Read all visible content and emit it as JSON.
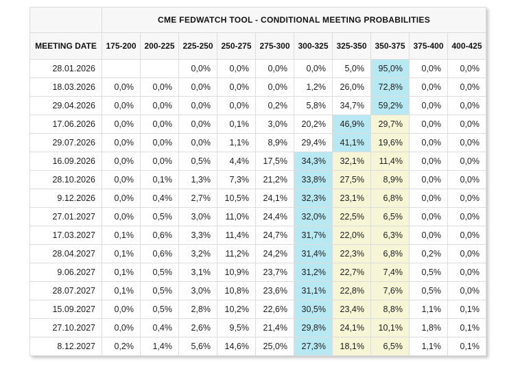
{
  "chart_data": {
    "type": "table",
    "title": "CME FEDWATCH TOOL - CONDITIONAL MEETING PROBABILITIES",
    "row_header": "MEETING DATE",
    "columns": [
      "175-200",
      "200-225",
      "225-250",
      "250-275",
      "275-300",
      "300-325",
      "325-350",
      "350-375",
      "375-400",
      "400-425"
    ],
    "colors": {
      "modal_highlight": "#b8e9f3",
      "secondary_highlight": "#f6f6d6",
      "header_background": "#f7f7f7",
      "border": "#dcdcdc",
      "text": "#1c1c1c"
    },
    "rows": [
      {
        "date": "28.01.2026",
        "values": [
          "",
          "",
          "0,0%",
          "0,0%",
          "0,0%",
          "0,0%",
          "5,0%",
          "95,0%",
          "0,0%",
          "0,0%"
        ],
        "highlights": [
          "",
          "",
          "",
          "",
          "",
          "",
          "",
          "cyan",
          "",
          ""
        ]
      },
      {
        "date": "18.03.2026",
        "values": [
          "0,0%",
          "0,0%",
          "0,0%",
          "0,0%",
          "0,0%",
          "1,2%",
          "26,0%",
          "72,8%",
          "0,0%",
          "0,0%"
        ],
        "highlights": [
          "",
          "",
          "",
          "",
          "",
          "",
          "",
          "cyan",
          "",
          ""
        ]
      },
      {
        "date": "29.04.2026",
        "values": [
          "0,0%",
          "0,0%",
          "0,0%",
          "0,0%",
          "0,2%",
          "5,8%",
          "34,7%",
          "59,2%",
          "0,0%",
          "0,0%"
        ],
        "highlights": [
          "",
          "",
          "",
          "",
          "",
          "",
          "",
          "cyan",
          "",
          ""
        ]
      },
      {
        "date": "17.06.2026",
        "values": [
          "0,0%",
          "0,0%",
          "0,0%",
          "0,1%",
          "3,0%",
          "20,2%",
          "46,9%",
          "29,7%",
          "0,0%",
          "0,0%"
        ],
        "highlights": [
          "",
          "",
          "",
          "",
          "",
          "",
          "cyan",
          "yellow",
          "",
          ""
        ]
      },
      {
        "date": "29.07.2026",
        "values": [
          "0,0%",
          "0,0%",
          "0,0%",
          "1,1%",
          "8,9%",
          "29,4%",
          "41,1%",
          "19,6%",
          "0,0%",
          "0,0%"
        ],
        "highlights": [
          "",
          "",
          "",
          "",
          "",
          "",
          "cyan",
          "yellow",
          "",
          ""
        ]
      },
      {
        "date": "16.09.2026",
        "values": [
          "0,0%",
          "0,0%",
          "0,5%",
          "4,4%",
          "17,5%",
          "34,3%",
          "32,1%",
          "11,4%",
          "0,0%",
          "0,0%"
        ],
        "highlights": [
          "",
          "",
          "",
          "",
          "",
          "cyan",
          "yellow",
          "yellow",
          "",
          ""
        ]
      },
      {
        "date": "28.10.2026",
        "values": [
          "0,0%",
          "0,1%",
          "1,3%",
          "7,3%",
          "21,2%",
          "33,8%",
          "27,5%",
          "8,9%",
          "0,0%",
          "0,0%"
        ],
        "highlights": [
          "",
          "",
          "",
          "",
          "",
          "cyan",
          "yellow",
          "yellow",
          "",
          ""
        ]
      },
      {
        "date": "9.12.2026",
        "values": [
          "0,0%",
          "0,4%",
          "2,7%",
          "10,5%",
          "24,1%",
          "32,3%",
          "23,1%",
          "6,8%",
          "0,0%",
          "0,0%"
        ],
        "highlights": [
          "",
          "",
          "",
          "",
          "",
          "cyan",
          "yellow",
          "yellow",
          "",
          ""
        ]
      },
      {
        "date": "27.01.2027",
        "values": [
          "0,0%",
          "0,5%",
          "3,0%",
          "11,0%",
          "24,4%",
          "32,0%",
          "22,5%",
          "6,5%",
          "0,0%",
          "0,0%"
        ],
        "highlights": [
          "",
          "",
          "",
          "",
          "",
          "cyan",
          "yellow",
          "yellow",
          "",
          ""
        ]
      },
      {
        "date": "17.03.2027",
        "values": [
          "0,1%",
          "0,6%",
          "3,3%",
          "11,4%",
          "24,7%",
          "31,7%",
          "22,0%",
          "6,3%",
          "0,0%",
          "0,0%"
        ],
        "highlights": [
          "",
          "",
          "",
          "",
          "",
          "cyan",
          "yellow",
          "yellow",
          "",
          ""
        ]
      },
      {
        "date": "28.04.2027",
        "values": [
          "0,1%",
          "0,6%",
          "3,2%",
          "11,2%",
          "24,2%",
          "31,4%",
          "22,3%",
          "6,8%",
          "0,2%",
          "0,0%"
        ],
        "highlights": [
          "",
          "",
          "",
          "",
          "",
          "cyan",
          "yellow",
          "yellow",
          "",
          ""
        ]
      },
      {
        "date": "9.06.2027",
        "values": [
          "0,1%",
          "0,5%",
          "3,1%",
          "10,9%",
          "23,7%",
          "31,2%",
          "22,7%",
          "7,4%",
          "0,5%",
          "0,0%"
        ],
        "highlights": [
          "",
          "",
          "",
          "",
          "",
          "cyan",
          "yellow",
          "yellow",
          "",
          ""
        ]
      },
      {
        "date": "28.07.2027",
        "values": [
          "0,1%",
          "0,5%",
          "3,0%",
          "10,8%",
          "23,6%",
          "31,1%",
          "22,8%",
          "7,6%",
          "0,5%",
          "0,0%"
        ],
        "highlights": [
          "",
          "",
          "",
          "",
          "",
          "cyan",
          "yellow",
          "yellow",
          "",
          ""
        ]
      },
      {
        "date": "15.09.2027",
        "values": [
          "0,0%",
          "0,5%",
          "2,8%",
          "10,2%",
          "22,6%",
          "30,5%",
          "23,4%",
          "8,8%",
          "1,1%",
          "0,1%"
        ],
        "highlights": [
          "",
          "",
          "",
          "",
          "",
          "cyan",
          "yellow",
          "yellow",
          "",
          ""
        ]
      },
      {
        "date": "27.10.2027",
        "values": [
          "0,0%",
          "0,4%",
          "2,6%",
          "9,5%",
          "21,4%",
          "29,8%",
          "24,1%",
          "10,1%",
          "1,8%",
          "0,1%"
        ],
        "highlights": [
          "",
          "",
          "",
          "",
          "",
          "cyan",
          "yellow",
          "yellow",
          "",
          ""
        ]
      },
      {
        "date": "8.12.2027",
        "values": [
          "0,2%",
          "1,4%",
          "5,6%",
          "14,6%",
          "25,0%",
          "27,3%",
          "18,1%",
          "6,5%",
          "1,1%",
          "0,1%"
        ],
        "highlights": [
          "",
          "",
          "",
          "",
          "",
          "cyan",
          "yellow",
          "yellow",
          "",
          ""
        ]
      }
    ]
  }
}
